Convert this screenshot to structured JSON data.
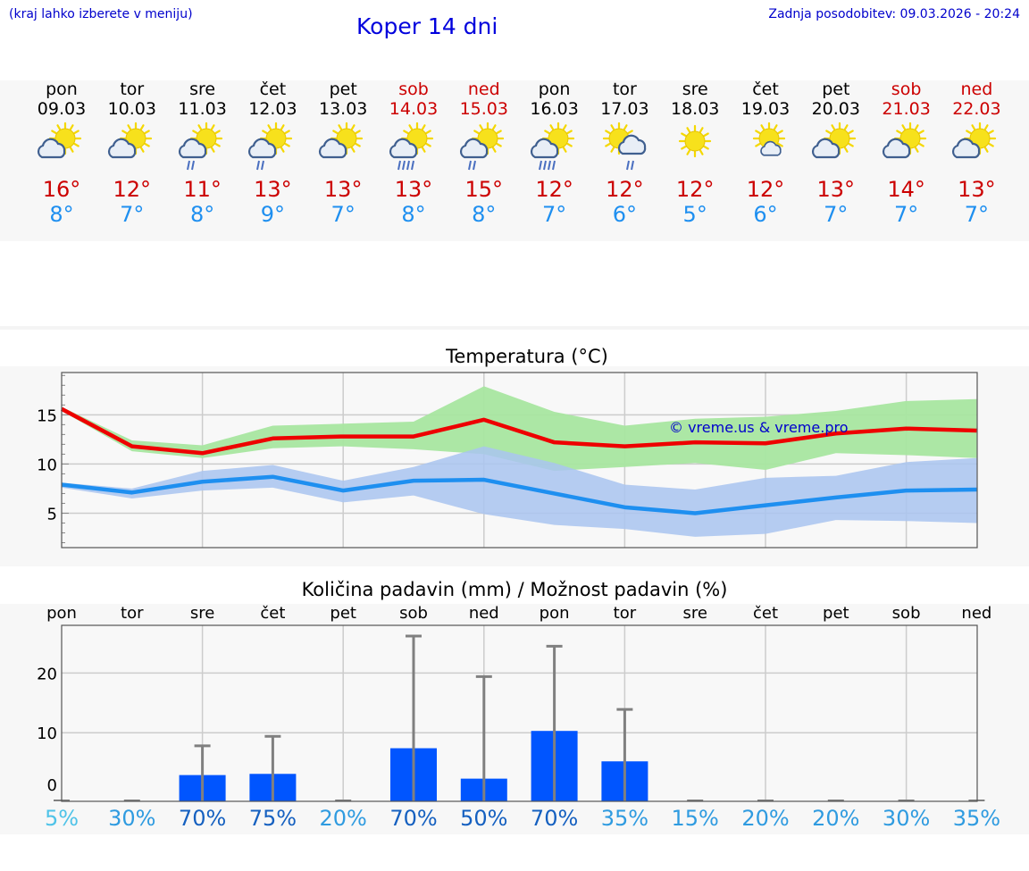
{
  "header": {
    "hint": "(kraj lahko izberete v meniju)",
    "title": "Koper 14 dni",
    "updated": "Zadnja posodobitev: 09.03.2026 - 20:24"
  },
  "days": [
    {
      "name": "pon",
      "date": "09.03",
      "weekend": false,
      "icon": "cloud-sun-icon",
      "rain": 0,
      "max": "16°",
      "min": "8°"
    },
    {
      "name": "tor",
      "date": "10.03",
      "weekend": false,
      "icon": "cloud-sun-icon",
      "rain": 0,
      "max": "12°",
      "min": "7°"
    },
    {
      "name": "sre",
      "date": "11.03",
      "weekend": false,
      "icon": "sun-cloud-rain-icon",
      "rain": 2,
      "max": "11°",
      "min": "8°"
    },
    {
      "name": "čet",
      "date": "12.03",
      "weekend": false,
      "icon": "sun-cloud-rain-icon",
      "rain": 2,
      "max": "13°",
      "min": "9°"
    },
    {
      "name": "pet",
      "date": "13.03",
      "weekend": false,
      "icon": "cloud-sun-icon",
      "rain": 0,
      "max": "13°",
      "min": "7°"
    },
    {
      "name": "sob",
      "date": "14.03",
      "weekend": true,
      "icon": "sun-cloud-heavy-rain-icon",
      "rain": 4,
      "max": "13°",
      "min": "8°"
    },
    {
      "name": "ned",
      "date": "15.03",
      "weekend": true,
      "icon": "sun-cloud-rain-icon",
      "rain": 2,
      "max": "15°",
      "min": "8°"
    },
    {
      "name": "pon",
      "date": "16.03",
      "weekend": false,
      "icon": "sun-cloud-heavy-rain-icon",
      "rain": 4,
      "max": "12°",
      "min": "7°"
    },
    {
      "name": "tor",
      "date": "17.03",
      "weekend": false,
      "icon": "sun-cloud-rain-icon",
      "rain": 2,
      "max": "12°",
      "min": "6°"
    },
    {
      "name": "sre",
      "date": "18.03",
      "weekend": false,
      "icon": "sun-icon",
      "rain": 0,
      "max": "12°",
      "min": "5°"
    },
    {
      "name": "čet",
      "date": "19.03",
      "weekend": false,
      "icon": "sun-small-cloud-icon",
      "rain": 0,
      "max": "12°",
      "min": "6°"
    },
    {
      "name": "pet",
      "date": "20.03",
      "weekend": false,
      "icon": "cloud-sun-icon",
      "rain": 0,
      "max": "13°",
      "min": "7°"
    },
    {
      "name": "sob",
      "date": "21.03",
      "weekend": true,
      "icon": "cloud-sun-icon",
      "rain": 0,
      "max": "14°",
      "min": "7°"
    },
    {
      "name": "ned",
      "date": "22.03",
      "weekend": true,
      "icon": "cloud-sun-icon",
      "rain": 0,
      "max": "13°",
      "min": "7°"
    }
  ],
  "colors": {
    "max_line": "#ee0000",
    "min_line": "#1e8ff0",
    "max_band": "#a8e6a0",
    "min_band": "#a9c4f0",
    "bar": "#0055ff",
    "whisker": "#808080",
    "pct_light": "#4fc3e8",
    "pct_mid": "#2f9be0",
    "pct_dark": "#1560c0"
  },
  "chart_data": [
    {
      "type": "line",
      "title": "Temperatura (°C)",
      "watermark": "© vreme.us & vreme.pro",
      "x": [
        "09.03",
        "10.03",
        "11.03",
        "12.03",
        "13.03",
        "14.03",
        "15.03",
        "16.03",
        "17.03",
        "18.03",
        "19.03",
        "20.03",
        "21.03",
        "22.03"
      ],
      "ylim": [
        1.5,
        19.3
      ],
      "yticks": [
        5,
        10,
        15
      ],
      "grid": true,
      "series": [
        {
          "name": "max",
          "values": [
            15.6,
            11.8,
            11.1,
            12.6,
            12.8,
            12.8,
            14.5,
            12.2,
            11.8,
            12.2,
            12.1,
            13.1,
            13.6,
            13.4
          ]
        },
        {
          "name": "min",
          "values": [
            7.9,
            7.1,
            8.2,
            8.7,
            7.3,
            8.3,
            8.4,
            7.0,
            5.6,
            5.0,
            5.8,
            6.6,
            7.3,
            7.4
          ]
        }
      ],
      "bands": [
        {
          "name": "max_range",
          "low": [
            15.4,
            11.3,
            10.6,
            11.6,
            11.8,
            11.5,
            11.0,
            9.3,
            9.7,
            10.1,
            9.4,
            11.1,
            10.9,
            10.6
          ],
          "high": [
            15.8,
            12.4,
            11.9,
            13.9,
            14.1,
            14.3,
            17.9,
            15.3,
            13.9,
            14.6,
            14.8,
            15.4,
            16.4,
            16.6
          ]
        },
        {
          "name": "min_range",
          "low": [
            7.6,
            6.5,
            7.3,
            7.6,
            6.1,
            6.8,
            4.9,
            3.8,
            3.4,
            2.6,
            2.9,
            4.3,
            4.2,
            4.0
          ],
          "high": [
            8.1,
            7.5,
            9.3,
            9.9,
            8.3,
            9.7,
            11.8,
            10.1,
            7.9,
            7.4,
            8.6,
            8.8,
            10.2,
            10.6
          ]
        }
      ]
    },
    {
      "type": "bar",
      "title": "Količina padavin (mm) / Možnost padavin (%)",
      "categories": [
        "pon",
        "tor",
        "sre",
        "čet",
        "pet",
        "sob",
        "ned",
        "pon",
        "tor",
        "sre",
        "čet",
        "pet",
        "sob",
        "ned"
      ],
      "ylim": [
        -1.5,
        28
      ],
      "yticks": [
        0,
        10,
        20
      ],
      "series": [
        {
          "name": "precipitation_mm",
          "values": [
            0,
            0,
            2.9,
            3.1,
            0,
            7.4,
            2.3,
            10.3,
            5.2,
            0,
            0,
            0,
            0,
            0
          ]
        },
        {
          "name": "precipitation_max_mm",
          "values": [
            0,
            0,
            7.8,
            9.4,
            0,
            26.2,
            19.4,
            24.5,
            13.9,
            0,
            0,
            0,
            0,
            0
          ]
        },
        {
          "name": "probability",
          "values": [
            "5%",
            "30%",
            "70%",
            "75%",
            "20%",
            "70%",
            "50%",
            "70%",
            "35%",
            "15%",
            "20%",
            "20%",
            "30%",
            "35%"
          ]
        }
      ]
    }
  ]
}
